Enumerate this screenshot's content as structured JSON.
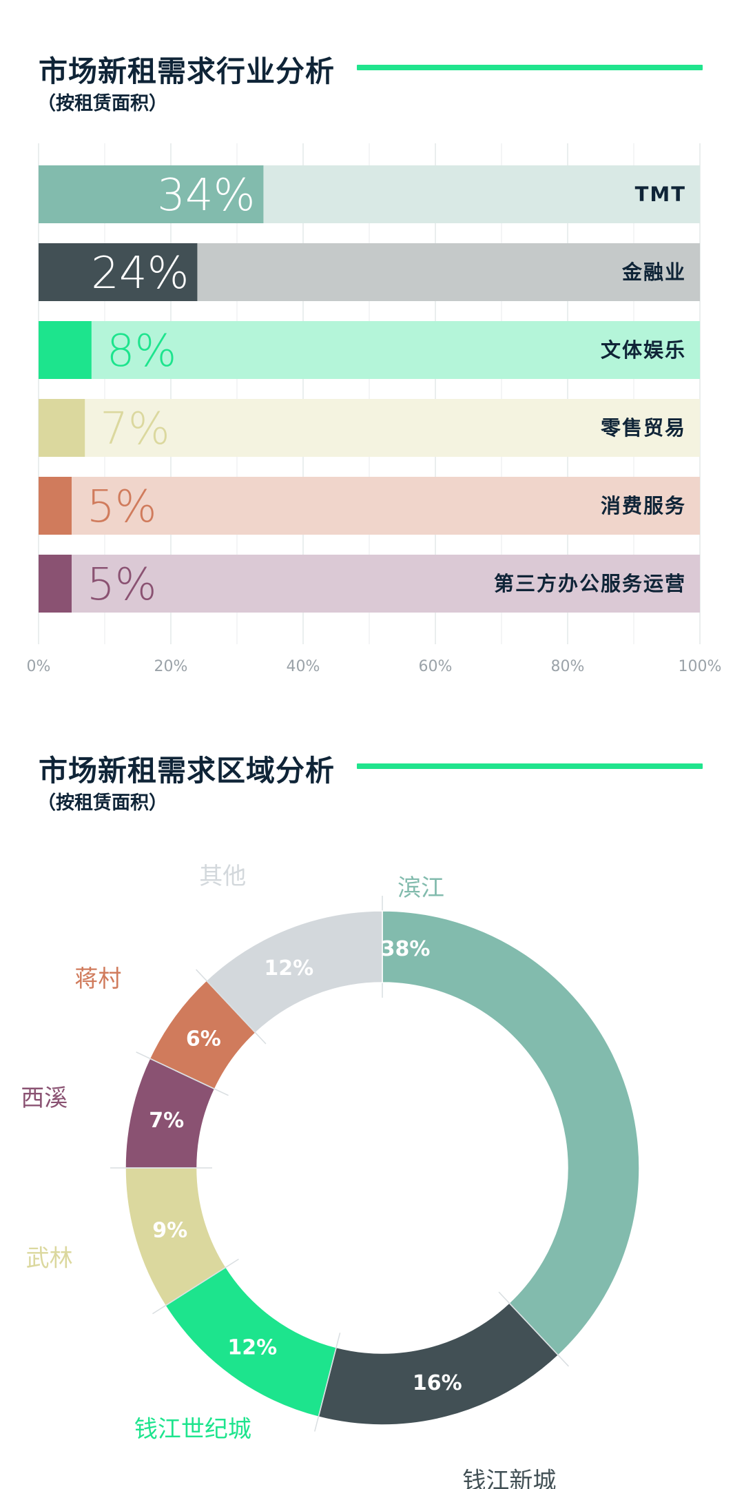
{
  "accent_color": "#20e48d",
  "sections": [
    {
      "title": "市场新租需求行业分析",
      "subtitle": "（按租赁面积）"
    },
    {
      "title": "市场新租需求区域分析",
      "subtitle": "（按租赁面积）"
    }
  ],
  "chart_data": [
    {
      "type": "bar",
      "orientation": "horizontal",
      "title": "市场新租需求行业分析",
      "subtitle": "（按租赁面积）",
      "categories": [
        "TMT",
        "金融业",
        "文体娱乐",
        "零售贸易",
        "消费服务",
        "第三方办公服务运营"
      ],
      "values": [
        34,
        24,
        8,
        7,
        5,
        5
      ],
      "value_labels": [
        "34%",
        "24%",
        "8%",
        "7%",
        "5%",
        "5%"
      ],
      "colors": [
        "#82bbad",
        "#425055",
        "#1de48d",
        "#dbd89e",
        "#d07b5c",
        "#8a5272"
      ],
      "track_colors": [
        "#d9e9e5",
        "#c5c9c9",
        "#b4f5d9",
        "#f4f3e0",
        "#f0d5cb",
        "#dbc9d5"
      ],
      "xlim": [
        0,
        100
      ],
      "x_ticks": [
        "0%",
        "20%",
        "40%",
        "60%",
        "80%",
        "100%"
      ],
      "x_tick_values": [
        0,
        20,
        40,
        60,
        80,
        100
      ],
      "grid": true
    },
    {
      "type": "pie",
      "variant": "donut",
      "title": "市场新租需求区域分析",
      "subtitle": "（按租赁面积）",
      "categories": [
        "滨江",
        "钱江新城",
        "钱江世纪城",
        "武林",
        "西溪",
        "蒋村",
        "其他"
      ],
      "values": [
        38,
        16,
        12,
        9,
        7,
        6,
        12
      ],
      "value_labels": [
        "38%",
        "16%",
        "12%",
        "9%",
        "7%",
        "6%",
        "12%"
      ],
      "colors": [
        "#82bbad",
        "#425055",
        "#1de48d",
        "#dbd89e",
        "#8a5272",
        "#d07b5c",
        "#d3d8dc"
      ],
      "name_colors": [
        "#82bbad",
        "#425055",
        "#1de48d",
        "#dbd89e",
        "#8a5272",
        "#d07b5c",
        "#d3d8dc"
      ]
    }
  ]
}
